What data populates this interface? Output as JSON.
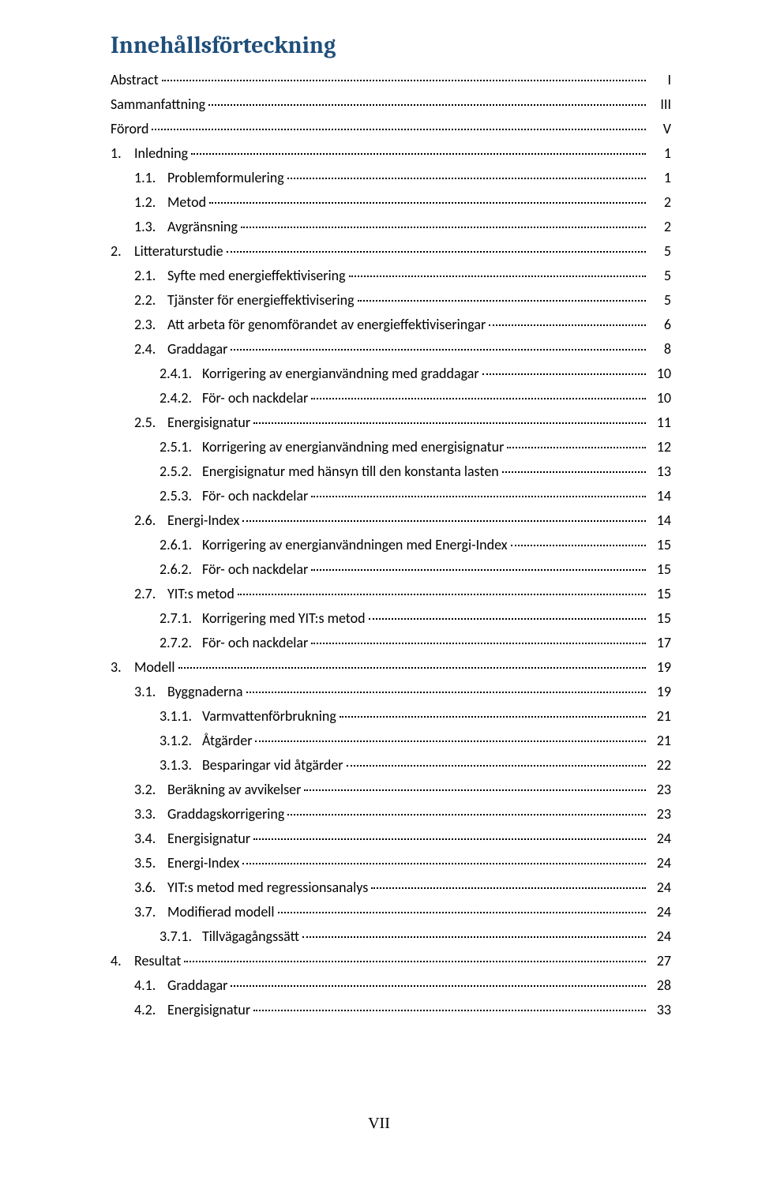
{
  "title": "Innehållsförteckning",
  "footer_page_number": "VII",
  "colors": {
    "title": "#1f4e79",
    "text": "#000000",
    "background": "#ffffff",
    "leader": "#000000"
  },
  "typography": {
    "title_font": "Cambria",
    "title_size_pt": 22,
    "body_font": "Calibri",
    "body_size_pt": 13
  },
  "toc": [
    {
      "level": 0,
      "num": "",
      "text": "Abstract",
      "page": "I"
    },
    {
      "level": 0,
      "num": "",
      "text": "Sammanfattning",
      "page": "III"
    },
    {
      "level": 0,
      "num": "",
      "text": "Förord",
      "page": "V"
    },
    {
      "level": 0,
      "num": "1.",
      "text": "Inledning",
      "page": "1"
    },
    {
      "level": 1,
      "num": "1.1.",
      "text": "Problemformulering",
      "page": "1"
    },
    {
      "level": 1,
      "num": "1.2.",
      "text": "Metod",
      "page": "2"
    },
    {
      "level": 1,
      "num": "1.3.",
      "text": "Avgränsning",
      "page": "2"
    },
    {
      "level": 0,
      "num": "2.",
      "text": "Litteraturstudie",
      "page": "5"
    },
    {
      "level": 1,
      "num": "2.1.",
      "text": "Syfte med energieffektivisering",
      "page": "5"
    },
    {
      "level": 1,
      "num": "2.2.",
      "text": "Tjänster för energieffektivisering",
      "page": "5"
    },
    {
      "level": 1,
      "num": "2.3.",
      "text": "Att arbeta för genomförandet av energieffektiviseringar",
      "page": "6"
    },
    {
      "level": 1,
      "num": "2.4.",
      "text": "Graddagar",
      "page": "8"
    },
    {
      "level": 2,
      "num": "2.4.1.",
      "text": "Korrigering av energianvändning med graddagar",
      "page": "10"
    },
    {
      "level": 2,
      "num": "2.4.2.",
      "text": "För- och nackdelar",
      "page": "10"
    },
    {
      "level": 1,
      "num": "2.5.",
      "text": "Energisignatur",
      "page": "11"
    },
    {
      "level": 2,
      "num": "2.5.1.",
      "text": "Korrigering av energianvändning med energisignatur",
      "page": "12"
    },
    {
      "level": 2,
      "num": "2.5.2.",
      "text": "Energisignatur med hänsyn till den konstanta lasten",
      "page": "13"
    },
    {
      "level": 2,
      "num": "2.5.3.",
      "text": "För- och nackdelar",
      "page": "14"
    },
    {
      "level": 1,
      "num": "2.6.",
      "text": "Energi-Index",
      "page": "14"
    },
    {
      "level": 2,
      "num": "2.6.1.",
      "text": "Korrigering av energianvändningen med Energi-Index",
      "page": "15"
    },
    {
      "level": 2,
      "num": "2.6.2.",
      "text": "För- och nackdelar",
      "page": "15"
    },
    {
      "level": 1,
      "num": "2.7.",
      "text": "YIT:s metod",
      "page": "15"
    },
    {
      "level": 2,
      "num": "2.7.1.",
      "text": "Korrigering med YIT:s metod",
      "page": "15"
    },
    {
      "level": 2,
      "num": "2.7.2.",
      "text": "För- och nackdelar",
      "page": "17"
    },
    {
      "level": 0,
      "num": "3.",
      "text": "Modell",
      "page": "19"
    },
    {
      "level": 1,
      "num": "3.1.",
      "text": "Byggnaderna",
      "page": "19"
    },
    {
      "level": 2,
      "num": "3.1.1.",
      "text": "Varmvattenförbrukning",
      "page": "21"
    },
    {
      "level": 2,
      "num": "3.1.2.",
      "text": "Åtgärder",
      "page": "21"
    },
    {
      "level": 2,
      "num": "3.1.3.",
      "text": "Besparingar vid åtgärder",
      "page": "22"
    },
    {
      "level": 1,
      "num": "3.2.",
      "text": "Beräkning av avvikelser",
      "page": "23"
    },
    {
      "level": 1,
      "num": "3.3.",
      "text": "Graddagskorrigering",
      "page": "23"
    },
    {
      "level": 1,
      "num": "3.4.",
      "text": "Energisignatur",
      "page": "24"
    },
    {
      "level": 1,
      "num": "3.5.",
      "text": "Energi-Index",
      "page": "24"
    },
    {
      "level": 1,
      "num": "3.6.",
      "text": "YIT:s metod med regressionsanalys",
      "page": "24"
    },
    {
      "level": 1,
      "num": "3.7.",
      "text": "Modifierad modell",
      "page": "24"
    },
    {
      "level": 2,
      "num": "3.7.1.",
      "text": "Tillvägagångssätt",
      "page": "24"
    },
    {
      "level": 0,
      "num": "4.",
      "text": "Resultat",
      "page": "27"
    },
    {
      "level": 1,
      "num": "4.1.",
      "text": "Graddagar",
      "page": "28"
    },
    {
      "level": 1,
      "num": "4.2.",
      "text": "Energisignatur",
      "page": "33"
    }
  ]
}
